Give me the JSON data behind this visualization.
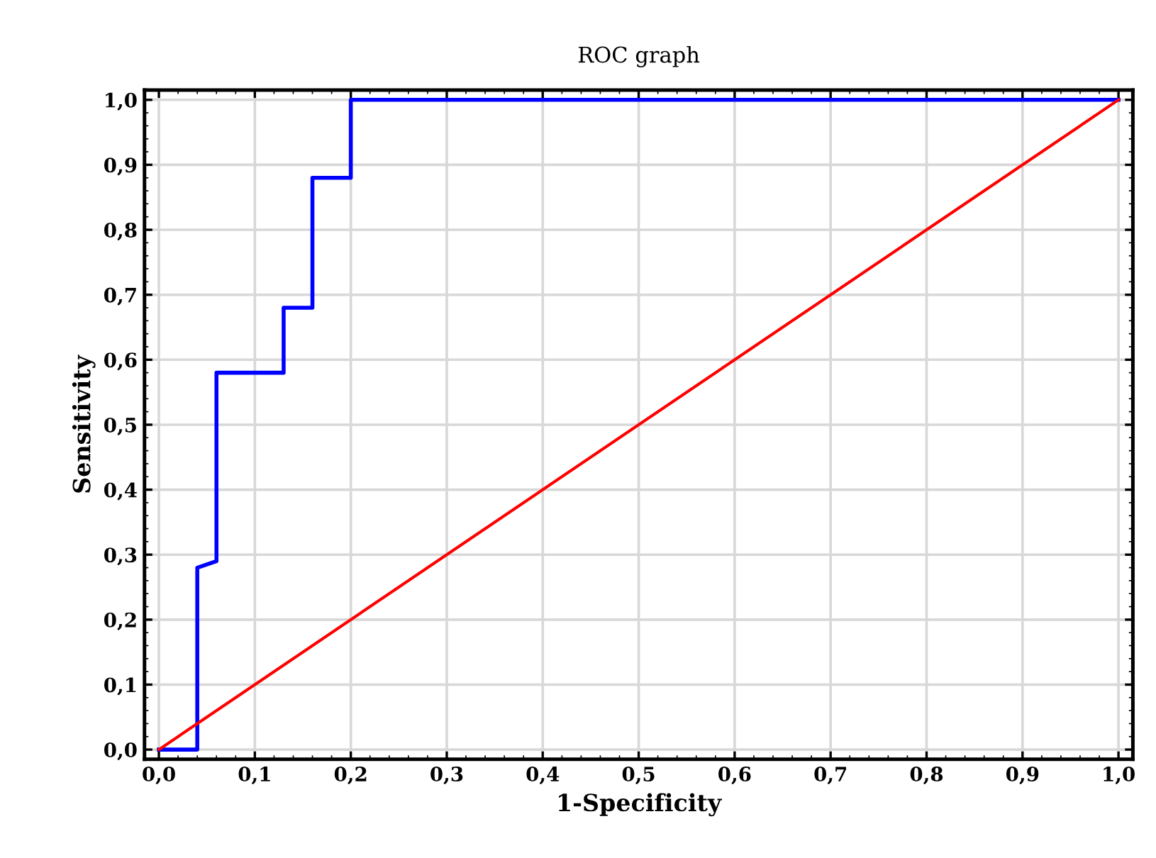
{
  "chart_data": {
    "type": "line",
    "title": "ROC graph",
    "xlabel": "1-Specificity",
    "ylabel": "Sensitivity",
    "series": [
      {
        "color": "#0000ff",
        "x": [
          0,
          0.04,
          0.04,
          0.06,
          0.06,
          0.13,
          0.13,
          0.16,
          0.16,
          0.2,
          0.2,
          1.0
        ],
        "values": [
          0,
          0,
          0.28,
          0.29,
          0.58,
          0.58,
          0.68,
          0.68,
          0.88,
          0.88,
          1.0,
          1.0
        ]
      },
      {
        "color": "#ff0000",
        "x": [
          0,
          1.0
        ],
        "values": [
          0,
          1.0
        ]
      }
    ],
    "xlim": [
      -0.015,
      1.015
    ],
    "ylim": [
      -0.015,
      1.015
    ],
    "xticks": [
      {
        "value": 0,
        "label": "0,0"
      },
      {
        "value": 0.1,
        "label": "0,1"
      },
      {
        "value": 0.2,
        "label": "0,2"
      },
      {
        "value": 0.3,
        "label": "0,3"
      },
      {
        "value": 0.4,
        "label": "0,4"
      },
      {
        "value": 0.5,
        "label": "0,5"
      },
      {
        "value": 0.6,
        "label": "0,6"
      },
      {
        "value": 0.7,
        "label": "0,7"
      },
      {
        "value": 0.8,
        "label": "0,8"
      },
      {
        "value": 0.9,
        "label": "0,9"
      },
      {
        "value": 1.0,
        "label": "1,0"
      }
    ],
    "yticks": [
      {
        "value": 0,
        "label": "0,0"
      },
      {
        "value": 0.1,
        "label": "0,1"
      },
      {
        "value": 0.2,
        "label": "0,2"
      },
      {
        "value": 0.3,
        "label": "0,3"
      },
      {
        "value": 0.4,
        "label": "0,4"
      },
      {
        "value": 0.5,
        "label": "0,5"
      },
      {
        "value": 0.6,
        "label": "0,6"
      },
      {
        "value": 0.7,
        "label": "0,7"
      },
      {
        "value": 0.8,
        "label": "0,8"
      },
      {
        "value": 0.9,
        "label": "0,9"
      },
      {
        "value": 1.0,
        "label": "1,0"
      }
    ],
    "grid": true,
    "legend": false,
    "marker": "none",
    "line_style": "solid"
  }
}
